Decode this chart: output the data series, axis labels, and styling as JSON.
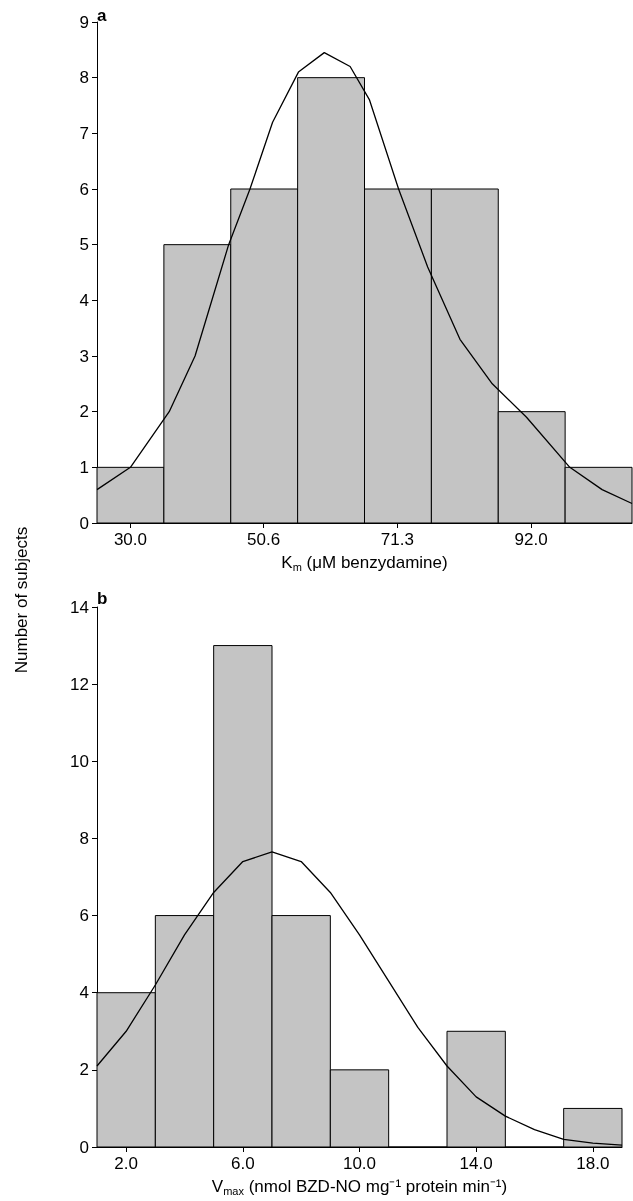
{
  "chart_data": [
    {
      "type": "histogram",
      "title": "a",
      "ylabel": "Number of subjects",
      "xlabel": "K$_{m}$ (μM benzydamine)",
      "color": "#c4c4c4",
      "bins": [
        24.825,
        35.175,
        45.525,
        55.875,
        66.225,
        76.575,
        86.925,
        97.275,
        107.625
      ],
      "values": [
        1,
        5,
        6,
        8,
        6,
        6,
        2,
        1
      ],
      "xlim": [
        24.825,
        107.625
      ],
      "xticks": [
        {
          "value": 30,
          "label": "30.0"
        },
        {
          "value": 50.6,
          "label": "50.6"
        },
        {
          "value": 71.3,
          "label": "71.3"
        },
        {
          "value": 92,
          "label": "92.0"
        }
      ],
      "ylim": [
        0,
        9
      ],
      "yticks": [
        0,
        1,
        2,
        3,
        4,
        5,
        6,
        7,
        8,
        9
      ],
      "series": [
        {
          "type": "line",
          "color": "#000000",
          "x": [
            24.825,
            30,
            36,
            40,
            45.2,
            48.5,
            52,
            56,
            60,
            64,
            67,
            71.5,
            76,
            81,
            86,
            91.3,
            98,
            103,
            107.625
          ],
          "values": [
            0.6,
            1.0,
            2.0,
            3.0,
            5.0,
            6.0,
            7.2,
            8.1,
            8.45,
            8.2,
            7.6,
            6.0,
            4.6,
            3.3,
            2.5,
            1.9,
            1.0,
            0.6,
            0.35
          ]
        }
      ]
    },
    {
      "type": "histogram",
      "title": "b",
      "xlabel": "V$_{max}$ (nmol BZD-NO mg⁻¹ protein min⁻¹)",
      "color": "#c4c4c4",
      "bins": [
        1,
        3,
        5,
        7,
        9,
        11,
        13,
        15,
        17,
        19
      ],
      "values": [
        4,
        6,
        13,
        6,
        2,
        0,
        3,
        0,
        1
      ],
      "xlim": [
        1,
        19
      ],
      "xticks": [
        {
          "value": 2,
          "label": "2.0"
        },
        {
          "value": 6,
          "label": "6.0"
        },
        {
          "value": 10,
          "label": "10.0"
        },
        {
          "value": 14,
          "label": "14.0"
        },
        {
          "value": 18,
          "label": "18.0"
        }
      ],
      "ylim": [
        0,
        14
      ],
      "yticks": [
        0,
        2,
        4,
        6,
        8,
        10,
        12,
        14
      ],
      "series": [
        {
          "type": "line",
          "color": "#000000",
          "x": [
            1,
            2,
            3,
            4,
            5,
            6,
            7,
            8,
            9,
            10,
            11,
            12,
            13,
            14,
            15,
            16,
            17,
            18,
            19
          ],
          "values": [
            2.1,
            3.0,
            4.2,
            5.5,
            6.6,
            7.4,
            7.65,
            7.4,
            6.6,
            5.5,
            4.3,
            3.1,
            2.1,
            1.3,
            0.8,
            0.45,
            0.2,
            0.1,
            0.05
          ]
        }
      ]
    }
  ]
}
